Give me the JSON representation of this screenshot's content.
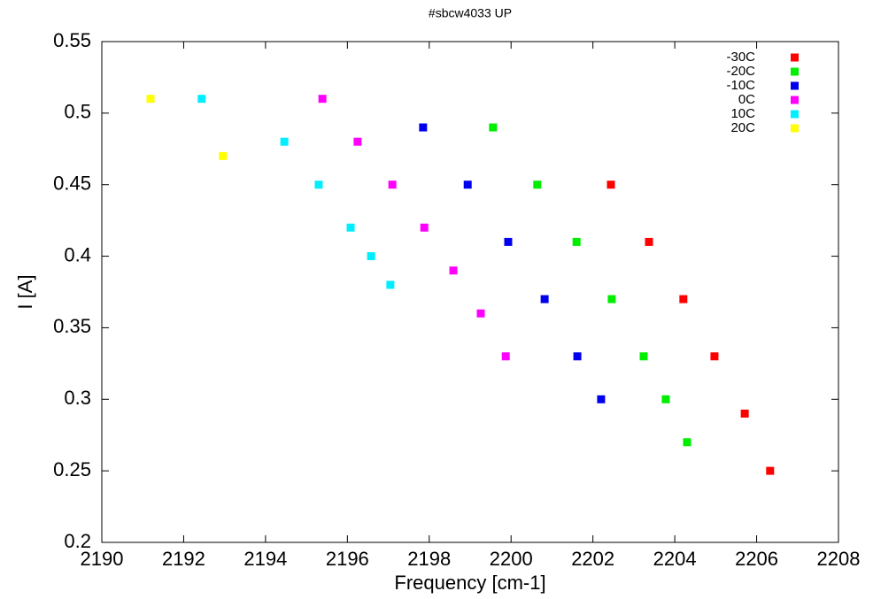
{
  "chart_data": {
    "type": "scatter",
    "title": "#sbcw4033 UP",
    "x_label": "Frequency [cm-1]",
    "y_label": "I [A]",
    "xlim": [
      2190,
      2208
    ],
    "xticks": [
      2190,
      2192,
      2194,
      2196,
      2198,
      2200,
      2202,
      2204,
      2206,
      2208
    ],
    "ylim": [
      0.2,
      0.55
    ],
    "yticks": [
      0.2,
      0.25,
      0.3,
      0.35,
      0.4,
      0.45,
      0.5,
      0.55
    ],
    "grid": false,
    "legend": "top-right",
    "series": [
      {
        "name": "-30C",
        "color": "#ff0000",
        "x": [
          2202.44,
          2203.37,
          2204.21,
          2204.97,
          2205.71,
          2206.33
        ],
        "values": [
          0.45,
          0.41,
          0.37,
          0.33,
          0.29,
          0.25
        ]
      },
      {
        "name": "-20C",
        "color": "#00ee00",
        "x": [
          2199.56,
          2200.64,
          2201.6,
          2202.46,
          2203.24,
          2203.78,
          2204.3
        ],
        "values": [
          0.49,
          0.45,
          0.41,
          0.37,
          0.33,
          0.3,
          0.27
        ]
      },
      {
        "name": "-10C",
        "color": "#0000ee",
        "x": [
          2197.85,
          2198.94,
          2199.93,
          2200.82,
          2201.62,
          2202.2
        ],
        "values": [
          0.49,
          0.45,
          0.41,
          0.37,
          0.33,
          0.3
        ]
      },
      {
        "name": "0C",
        "color": "#ff00ff",
        "x": [
          2195.39,
          2196.25,
          2197.1,
          2197.88,
          2198.59,
          2199.26,
          2199.87
        ],
        "values": [
          0.51,
          0.48,
          0.45,
          0.42,
          0.39,
          0.36,
          0.33
        ]
      },
      {
        "name": "10C",
        "color": "#00eeff",
        "x": [
          2192.44,
          2194.46,
          2195.3,
          2196.08,
          2196.58,
          2197.05
        ],
        "values": [
          0.51,
          0.48,
          0.45,
          0.42,
          0.4,
          0.38
        ]
      },
      {
        "name": "20C",
        "color": "#ffff00",
        "x": [
          2191.19,
          2192.96
        ],
        "values": [
          0.51,
          0.47
        ]
      }
    ]
  }
}
